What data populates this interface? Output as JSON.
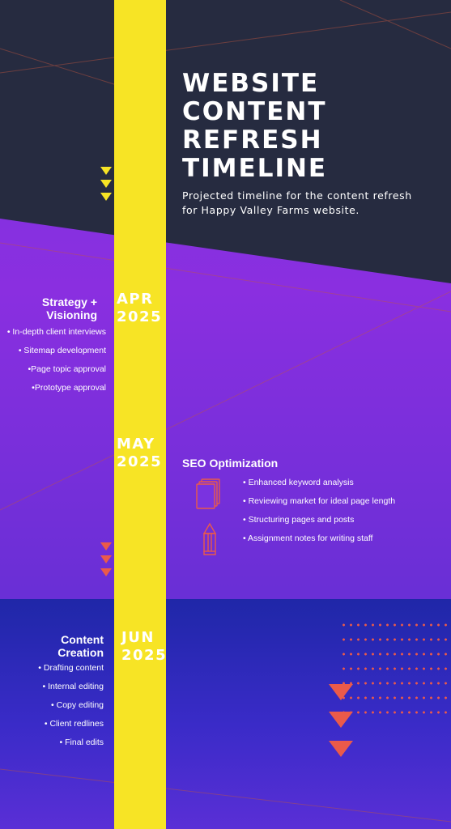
{
  "header": {
    "title_lines": [
      "WEBSITE",
      "CONTENT",
      "REFRESH",
      "TIMELINE"
    ],
    "subtitle": "Projected timeline for the content refresh for Happy Valley Farms website."
  },
  "colors": {
    "navy": "#262b40",
    "purple": "#7a33e0",
    "blue": "#1f27a8",
    "yellow": "#f7e425",
    "coral": "#ea5a4a",
    "white": "#ffffff"
  },
  "phases": [
    {
      "date_lines": [
        "APR",
        "2025"
      ],
      "title_lines": [
        "Strategy +",
        "Visioning"
      ],
      "tasks": [
        "• In-depth client interviews",
        "• Sitemap development",
        "•Page topic approval",
        "•Prototype approval"
      ]
    },
    {
      "date_lines": [
        "MAY",
        "2025"
      ],
      "title": "SEO Optimization",
      "tasks": [
        "• Enhanced keyword analysis",
        "•  Reviewing market for ideal page length",
        "• Structuring pages and posts",
        "• Assignment notes for writing staff"
      ],
      "icons": [
        "documents-icon",
        "pencil-icon"
      ]
    },
    {
      "date_lines": [
        "JUN",
        "2025"
      ],
      "title_lines": [
        "Content",
        "Creation"
      ],
      "tasks": [
        "• Drafting content",
        "• Internal editing",
        "• Copy editing",
        "• Client redlines",
        "• Final edits"
      ]
    }
  ]
}
